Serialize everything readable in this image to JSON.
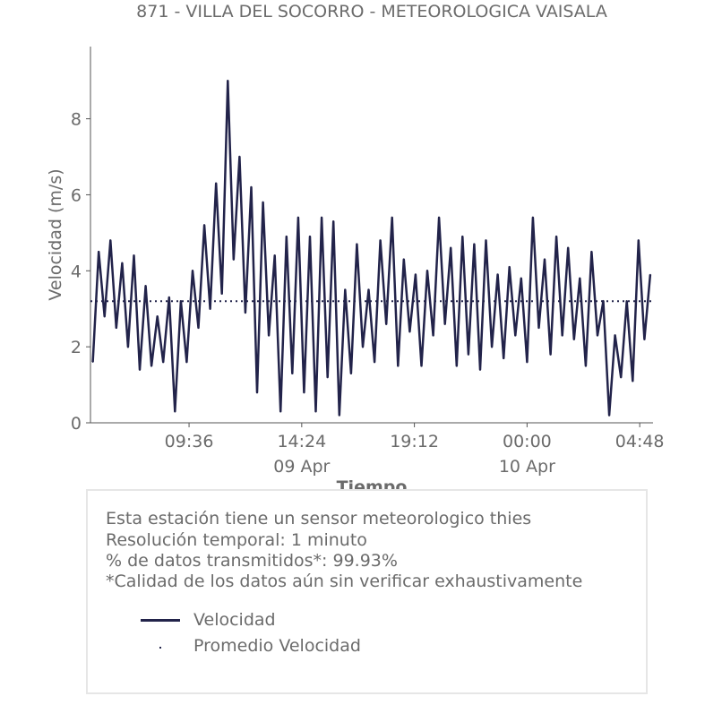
{
  "chart_data": {
    "type": "line",
    "title": "871 - VILLA DEL SOCORRO - METEOROLOGICA VAISALA",
    "xlabel": "Tiempo",
    "ylabel": "Velocidad (m/s)",
    "ylim": [
      0,
      9.9
    ],
    "xlim": [
      "09 Apr 05:24",
      "10 Apr 05:22"
    ],
    "yticks": [
      "0",
      "2",
      "4",
      "6",
      "8"
    ],
    "xticks": [
      {
        "label": "09:36",
        "sublabel": "",
        "at": "09 Apr 09:36"
      },
      {
        "label": "14:24",
        "sublabel": "09 Apr",
        "at": "09 Apr 14:24"
      },
      {
        "label": "19:12",
        "sublabel": "",
        "at": "09 Apr 19:12"
      },
      {
        "label": "00:00",
        "sublabel": "10 Apr",
        "at": "10 Apr 00:00"
      },
      {
        "label": "04:48",
        "sublabel": "",
        "at": "10 Apr 04:48"
      }
    ],
    "grid": false,
    "series": [
      {
        "name": "Velocidad",
        "color": "#22234a",
        "style": "solid",
        "x": [
          "09 Apr 05:30",
          "09 Apr 05:45",
          "09 Apr 06:00",
          "09 Apr 06:15",
          "09 Apr 06:30",
          "09 Apr 06:45",
          "09 Apr 07:00",
          "09 Apr 07:15",
          "09 Apr 07:30",
          "09 Apr 07:45",
          "09 Apr 08:00",
          "09 Apr 08:15",
          "09 Apr 08:30",
          "09 Apr 08:45",
          "09 Apr 09:00",
          "09 Apr 09:15",
          "09 Apr 09:30",
          "09 Apr 09:45",
          "09 Apr 10:00",
          "09 Apr 10:15",
          "09 Apr 10:30",
          "09 Apr 10:45",
          "09 Apr 11:00",
          "09 Apr 11:15",
          "09 Apr 11:30",
          "09 Apr 11:45",
          "09 Apr 12:00",
          "09 Apr 12:15",
          "09 Apr 12:30",
          "09 Apr 12:45",
          "09 Apr 13:00",
          "09 Apr 13:15",
          "09 Apr 13:30",
          "09 Apr 13:45",
          "09 Apr 14:00",
          "09 Apr 14:15",
          "09 Apr 14:30",
          "09 Apr 14:45",
          "09 Apr 15:00",
          "09 Apr 15:15",
          "09 Apr 15:30",
          "09 Apr 15:45",
          "09 Apr 16:00",
          "09 Apr 16:15",
          "09 Apr 16:30",
          "09 Apr 16:45",
          "09 Apr 17:00",
          "09 Apr 17:15",
          "09 Apr 17:30",
          "09 Apr 17:45",
          "09 Apr 18:00",
          "09 Apr 18:15",
          "09 Apr 18:30",
          "09 Apr 18:45",
          "09 Apr 19:00",
          "09 Apr 19:15",
          "09 Apr 19:30",
          "09 Apr 19:45",
          "09 Apr 20:00",
          "09 Apr 20:15",
          "09 Apr 20:30",
          "09 Apr 20:45",
          "09 Apr 21:00",
          "09 Apr 21:15",
          "09 Apr 21:30",
          "09 Apr 21:45",
          "09 Apr 22:00",
          "09 Apr 22:15",
          "09 Apr 22:30",
          "09 Apr 22:45",
          "09 Apr 23:00",
          "09 Apr 23:15",
          "09 Apr 23:30",
          "09 Apr 23:45",
          "10 Apr 00:00",
          "10 Apr 00:15",
          "10 Apr 00:30",
          "10 Apr 00:45",
          "10 Apr 01:00",
          "10 Apr 01:15",
          "10 Apr 01:30",
          "10 Apr 01:45",
          "10 Apr 02:00",
          "10 Apr 02:15",
          "10 Apr 02:30",
          "10 Apr 02:45",
          "10 Apr 03:00",
          "10 Apr 03:15",
          "10 Apr 03:30",
          "10 Apr 03:45",
          "10 Apr 04:00",
          "10 Apr 04:15",
          "10 Apr 04:30",
          "10 Apr 04:45",
          "10 Apr 05:00",
          "10 Apr 05:15"
        ],
        "values": [
          1.6,
          4.5,
          2.8,
          4.8,
          2.5,
          4.2,
          2.0,
          4.4,
          1.4,
          3.6,
          1.5,
          2.8,
          1.6,
          3.3,
          0.3,
          3.2,
          1.6,
          4.0,
          2.5,
          5.2,
          3.0,
          6.3,
          3.4,
          9.0,
          4.3,
          7.0,
          2.9,
          6.2,
          0.8,
          5.8,
          2.3,
          4.4,
          0.3,
          4.9,
          1.3,
          5.4,
          0.8,
          4.9,
          0.3,
          5.4,
          1.2,
          5.3,
          0.2,
          3.5,
          1.3,
          4.7,
          2.0,
          3.5,
          1.6,
          4.8,
          2.6,
          5.4,
          1.5,
          4.3,
          2.4,
          3.9,
          1.5,
          4.0,
          2.3,
          5.4,
          2.6,
          4.6,
          1.5,
          4.9,
          1.8,
          4.7,
          1.4,
          4.8,
          2.0,
          3.9,
          1.7,
          4.1,
          2.3,
          3.8,
          1.6,
          5.4,
          2.5,
          4.3,
          1.8,
          4.9,
          2.3,
          4.6,
          2.2,
          3.8,
          1.5,
          4.5,
          2.3,
          3.2,
          0.2,
          2.3,
          1.2,
          3.2,
          1.1,
          4.8,
          2.2,
          3.9
        ]
      },
      {
        "name": "Promedio Velocidad",
        "color": "#22234a",
        "style": "dotted",
        "x": [
          "09 Apr 05:24",
          "10 Apr 05:22"
        ],
        "values": [
          3.2,
          3.2
        ]
      }
    ],
    "legend_position": "below"
  },
  "info": {
    "line1": "Esta estación tiene un sensor meteorologico thies",
    "line2": "Resolución temporal: 1 minuto",
    "line3": "% de datos transmitidos*: 99.93%",
    "line4": "*Calidad de los datos aún sin verificar exhaustivamente"
  }
}
